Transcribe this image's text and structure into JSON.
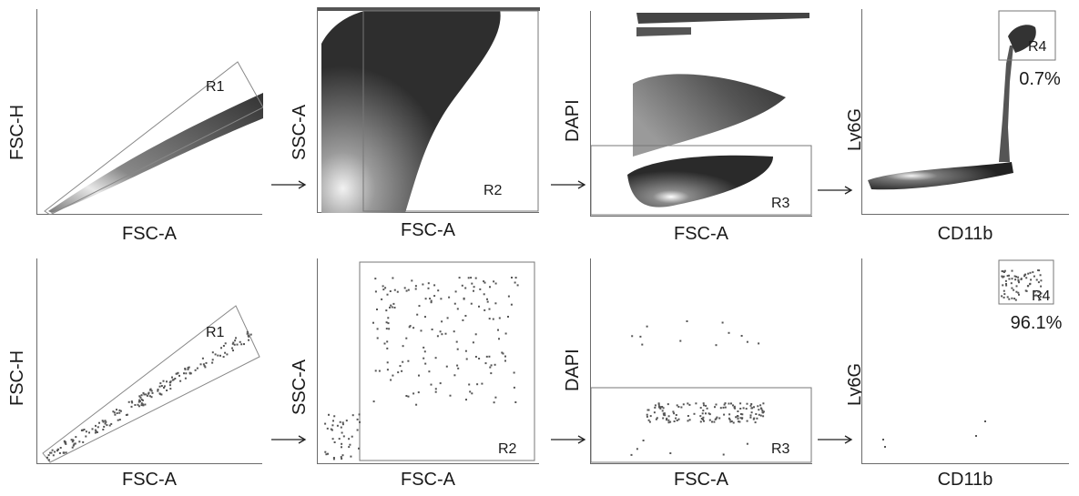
{
  "arrow_glyph": "→",
  "rows": [
    {
      "panels": [
        {
          "xlabel": "FSC-A",
          "ylabel": "FSC-H",
          "gate": "R1",
          "pct": ""
        },
        {
          "xlabel": "FSC-A",
          "ylabel": "SSC-A",
          "gate": "R2",
          "pct": ""
        },
        {
          "xlabel": "FSC-A",
          "ylabel": "DAPI",
          "gate": "R3",
          "pct": ""
        },
        {
          "xlabel": "CD11b",
          "ylabel": "Ly6G",
          "gate": "R4",
          "pct": "0.7%"
        }
      ]
    },
    {
      "panels": [
        {
          "xlabel": "FSC-A",
          "ylabel": "FSC-H",
          "gate": "R1",
          "pct": ""
        },
        {
          "xlabel": "FSC-A",
          "ylabel": "SSC-A",
          "gate": "R2",
          "pct": ""
        },
        {
          "xlabel": "FSC-A",
          "ylabel": "DAPI",
          "gate": "R3",
          "pct": ""
        },
        {
          "xlabel": "CD11b",
          "ylabel": "Ly6G",
          "gate": "R4",
          "pct": "96.1%"
        }
      ]
    }
  ],
  "chart_data": [
    {
      "type": "scatter",
      "xlabel": "FSC-A",
      "ylabel": "FSC-H",
      "gate": "R1",
      "style": "density"
    },
    {
      "type": "scatter",
      "xlabel": "FSC-A",
      "ylabel": "SSC-A",
      "gate": "R2",
      "style": "density"
    },
    {
      "type": "scatter",
      "xlabel": "FSC-A",
      "ylabel": "DAPI",
      "gate": "R3",
      "style": "density"
    },
    {
      "type": "scatter",
      "xlabel": "CD11b",
      "ylabel": "Ly6G",
      "gate": "R4",
      "gate_percent": "0.7%",
      "style": "density"
    },
    {
      "type": "scatter",
      "xlabel": "FSC-A",
      "ylabel": "FSC-H",
      "gate": "R1",
      "style": "dots"
    },
    {
      "type": "scatter",
      "xlabel": "FSC-A",
      "ylabel": "SSC-A",
      "gate": "R2",
      "style": "dots"
    },
    {
      "type": "scatter",
      "xlabel": "FSC-A",
      "ylabel": "DAPI",
      "gate": "R3",
      "style": "dots"
    },
    {
      "type": "scatter",
      "xlabel": "CD11b",
      "ylabel": "Ly6G",
      "gate": "R4",
      "gate_percent": "96.1%",
      "style": "dots"
    }
  ]
}
